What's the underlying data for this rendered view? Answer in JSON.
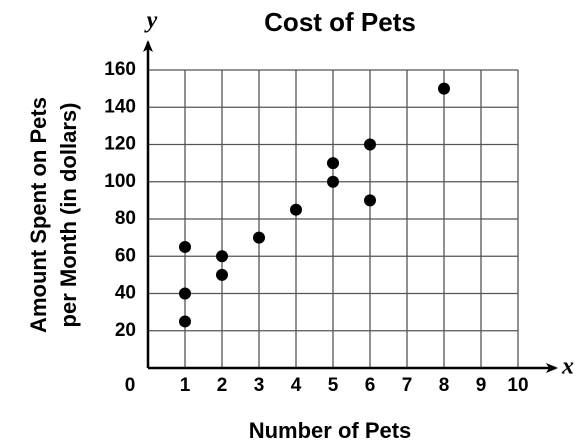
{
  "chart_data": {
    "type": "scatter",
    "title": "Cost of Pets",
    "xlabel": "Number of Pets",
    "ylabel": [
      "Amount Spent on Pets",
      "per Month (in dollars)"
    ],
    "x_axis_letter": "x",
    "y_axis_letter": "y",
    "x": [
      1,
      1,
      1,
      2,
      2,
      3,
      4,
      5,
      5,
      6,
      6,
      8
    ],
    "values": [
      65,
      40,
      25,
      60,
      50,
      70,
      85,
      110,
      100,
      120,
      90,
      150
    ],
    "color": "#000000",
    "xlim": [
      0,
      10
    ],
    "xticks": [
      0,
      1,
      2,
      3,
      4,
      5,
      6,
      7,
      8,
      9,
      10
    ],
    "ylim": [
      0,
      160
    ],
    "yticks": [
      20,
      40,
      60,
      80,
      100,
      120,
      140,
      160
    ],
    "grid": true
  }
}
